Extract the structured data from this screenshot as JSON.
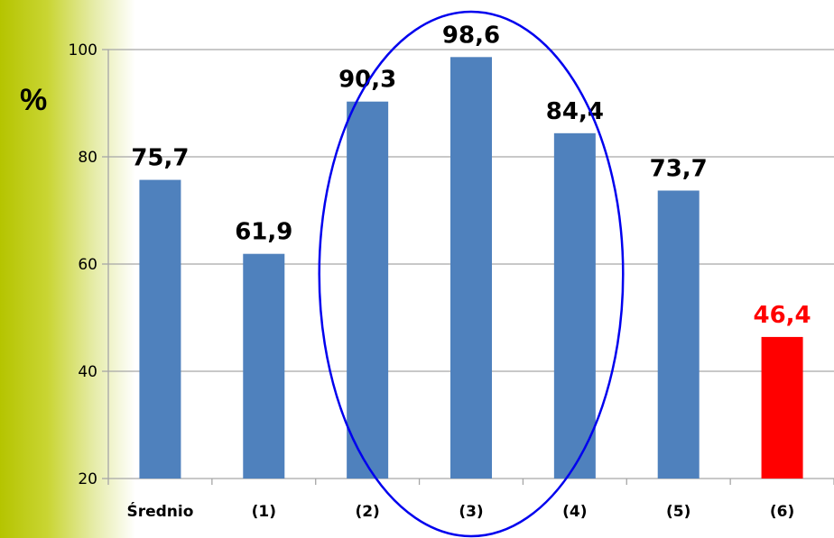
{
  "chart_data": {
    "type": "bar",
    "ylabel": "%",
    "ylim": [
      20,
      100
    ],
    "yticks": [
      20,
      40,
      60,
      80,
      100
    ],
    "grid": true,
    "categories": [
      "Średnio",
      "(1)",
      "(2)",
      "(3)",
      "(4)",
      "(5)",
      "(6)"
    ],
    "values": [
      75.7,
      61.9,
      90.3,
      98.6,
      84.4,
      73.7,
      46.4
    ],
    "value_labels": [
      "75,7",
      "61,9",
      "90,3",
      "98,6",
      "84,4",
      "73,7",
      "46,4"
    ],
    "bar_colors": [
      "#4f81bd",
      "#4f81bd",
      "#4f81bd",
      "#4f81bd",
      "#4f81bd",
      "#4f81bd",
      "#ff0000"
    ],
    "label_colors": [
      "#000000",
      "#000000",
      "#000000",
      "#000000",
      "#000000",
      "#000000",
      "#ff0000"
    ],
    "annotation": {
      "shape": "ellipse",
      "color": "#0000ee",
      "encloses_categories": [
        "(2)",
        "(3)",
        "(4)"
      ]
    },
    "colors": {
      "left_band": "#b5c400",
      "gridline": "#a6a6a6"
    }
  }
}
